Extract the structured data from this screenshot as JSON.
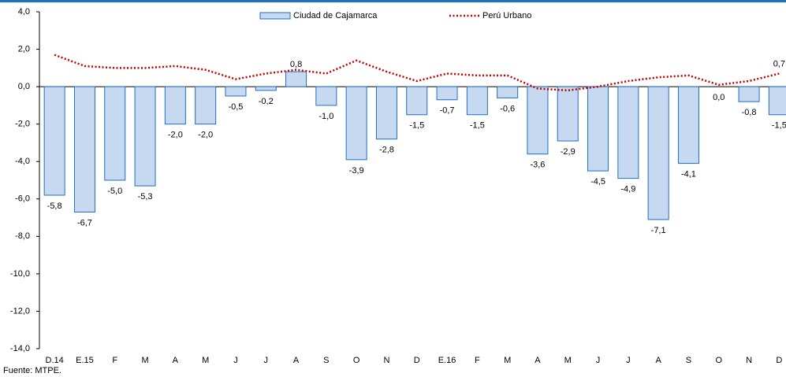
{
  "chart_data": {
    "type": "bar",
    "categories": [
      "D.14",
      "E.15",
      "F",
      "M",
      "A",
      "M",
      "J",
      "J",
      "A",
      "S",
      "O",
      "N",
      "D",
      "E.16",
      "F",
      "M",
      "A",
      "M",
      "J",
      "J",
      "A",
      "S",
      "O",
      "N",
      "D"
    ],
    "series": [
      {
        "name": "Ciudad de Cajamarca",
        "type": "bar",
        "color": "#c6d9f1",
        "stroke": "#1f6fbf",
        "values": [
          -5.8,
          -6.7,
          -5.0,
          -5.3,
          -2.0,
          -2.0,
          -0.5,
          -0.2,
          0.8,
          -1.0,
          -3.9,
          -2.8,
          -1.5,
          -0.7,
          -1.5,
          -0.6,
          -3.6,
          -2.9,
          -4.5,
          -4.9,
          -7.1,
          -4.1,
          0.0,
          -0.8,
          -1.5
        ],
        "value_labels": [
          "-5,8",
          "-6,7",
          "-5,0",
          "-5,3",
          "-2,0",
          "-2,0",
          "-0,5",
          "-0,2",
          "0,8",
          "-1,0",
          "-3,9",
          "-2,8",
          "-1,5",
          "-0,7",
          "-1,5",
          "-0,6",
          "-3,6",
          "-2,9",
          "-4,5",
          "-4,9",
          "-7,1",
          "-4,1",
          "0,0",
          "-0,8",
          "-1,5"
        ]
      },
      {
        "name": "Perú Urbano",
        "type": "line",
        "color": "#c00000",
        "values": [
          1.7,
          1.1,
          1.0,
          1.0,
          1.1,
          0.9,
          0.4,
          0.7,
          0.9,
          0.7,
          1.4,
          0.8,
          0.3,
          0.7,
          0.6,
          0.6,
          -0.1,
          -0.2,
          0.0,
          0.3,
          0.5,
          0.6,
          0.1,
          0.3,
          0.7
        ],
        "value_labels": [
          null,
          null,
          null,
          null,
          null,
          null,
          null,
          null,
          null,
          null,
          null,
          null,
          null,
          null,
          null,
          null,
          null,
          null,
          null,
          null,
          null,
          null,
          null,
          null,
          "0,7"
        ]
      }
    ],
    "ylim": [
      -14.0,
      4.0
    ],
    "yticks": [
      {
        "value": -14,
        "label": "-14,0"
      },
      {
        "value": -12,
        "label": "-12,0"
      },
      {
        "value": -10,
        "label": "-10,0"
      },
      {
        "value": -8,
        "label": "-8,0"
      },
      {
        "value": -6,
        "label": "-6,0"
      },
      {
        "value": -4,
        "label": "-4,0"
      },
      {
        "value": -2,
        "label": "-2,0"
      },
      {
        "value": 0,
        "label": "0,0"
      },
      {
        "value": 2,
        "label": "2,0"
      },
      {
        "value": 4,
        "label": "4,0"
      }
    ],
    "legend": "top",
    "source": "Fuente: MTPE."
  }
}
